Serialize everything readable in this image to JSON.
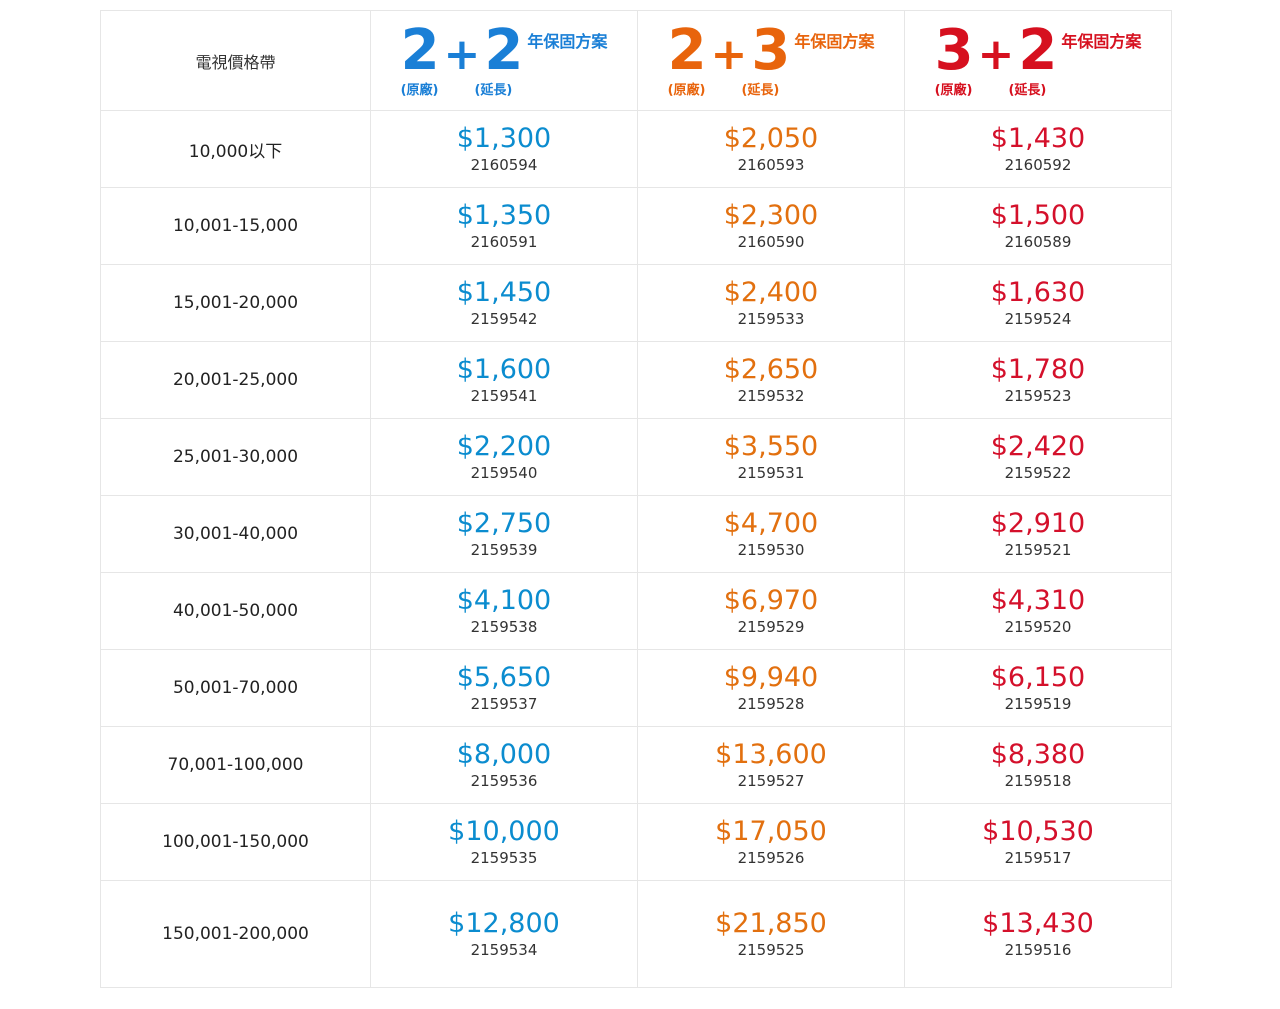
{
  "table": {
    "header": {
      "label": "電視價格帶",
      "plans": [
        {
          "original": "2",
          "plus": "+",
          "extended": "2",
          "suffix": "年保固方案",
          "original_label": "(原廠)",
          "extended_label": "(延長)"
        },
        {
          "original": "2",
          "plus": "+",
          "extended": "3",
          "suffix": "年保固方案",
          "original_label": "(原廠)",
          "extended_label": "(延長)"
        },
        {
          "original": "3",
          "plus": "+",
          "extended": "2",
          "suffix": "年保固方案",
          "original_label": "(原廠)",
          "extended_label": "(延長)"
        }
      ]
    },
    "rows": [
      {
        "range": "10,000以下",
        "cells": [
          {
            "price": "$1,300",
            "code": "2160594"
          },
          {
            "price": "$2,050",
            "code": "2160593"
          },
          {
            "price": "$1,430",
            "code": "2160592"
          }
        ]
      },
      {
        "range": "10,001-15,000",
        "cells": [
          {
            "price": "$1,350",
            "code": "2160591"
          },
          {
            "price": "$2,300",
            "code": "2160590"
          },
          {
            "price": "$1,500",
            "code": "2160589"
          }
        ]
      },
      {
        "range": "15,001-20,000",
        "cells": [
          {
            "price": "$1,450",
            "code": "2159542"
          },
          {
            "price": "$2,400",
            "code": "2159533"
          },
          {
            "price": "$1,630",
            "code": "2159524"
          }
        ]
      },
      {
        "range": "20,001-25,000",
        "cells": [
          {
            "price": "$1,600",
            "code": "2159541"
          },
          {
            "price": "$2,650",
            "code": "2159532"
          },
          {
            "price": "$1,780",
            "code": "2159523"
          }
        ]
      },
      {
        "range": "25,001-30,000",
        "cells": [
          {
            "price": "$2,200",
            "code": "2159540"
          },
          {
            "price": "$3,550",
            "code": "2159531"
          },
          {
            "price": "$2,420",
            "code": "2159522"
          }
        ]
      },
      {
        "range": "30,001-40,000",
        "cells": [
          {
            "price": "$2,750",
            "code": "2159539"
          },
          {
            "price": "$4,700",
            "code": "2159530"
          },
          {
            "price": "$2,910",
            "code": "2159521"
          }
        ]
      },
      {
        "range": "40,001-50,000",
        "cells": [
          {
            "price": "$4,100",
            "code": "2159538"
          },
          {
            "price": "$6,970",
            "code": "2159529"
          },
          {
            "price": "$4,310",
            "code": "2159520"
          }
        ]
      },
      {
        "range": "50,001-70,000",
        "cells": [
          {
            "price": "$5,650",
            "code": "2159537"
          },
          {
            "price": "$9,940",
            "code": "2159528"
          },
          {
            "price": "$6,150",
            "code": "2159519"
          }
        ]
      },
      {
        "range": "70,001-100,000",
        "cells": [
          {
            "price": "$8,000",
            "code": "2159536"
          },
          {
            "price": "$13,600",
            "code": "2159527"
          },
          {
            "price": "$8,380",
            "code": "2159518"
          }
        ]
      },
      {
        "range": "100,001-150,000",
        "cells": [
          {
            "price": "$10,000",
            "code": "2159535"
          },
          {
            "price": "$17,050",
            "code": "2159526"
          },
          {
            "price": "$10,530",
            "code": "2159517"
          }
        ]
      },
      {
        "range": "150,001-200,000",
        "cells": [
          {
            "price": "$12,800",
            "code": "2159534"
          },
          {
            "price": "$21,850",
            "code": "2159525"
          },
          {
            "price": "$13,430",
            "code": "2159516"
          }
        ]
      }
    ]
  }
}
